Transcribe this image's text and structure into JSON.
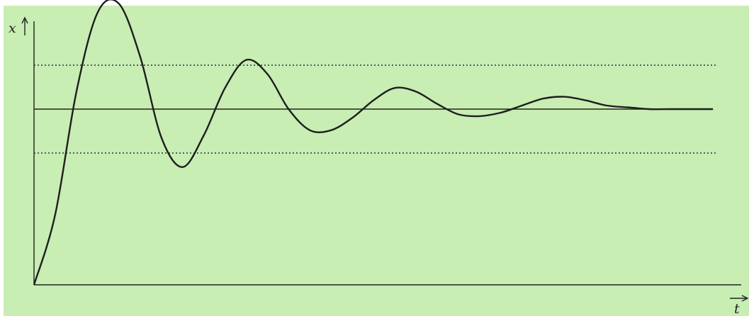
{
  "chart_data": {
    "type": "line",
    "title": "",
    "xlabel": "t",
    "ylabel": "x",
    "xlim": [
      0,
      10
    ],
    "ylim": [
      0,
      1.5
    ],
    "grid": false,
    "steady_state": 1.0,
    "tolerance_band": [
      0.75,
      1.25
    ],
    "series": [
      {
        "x": [
          0,
          0.3,
          0.6,
          0.9,
          1.2,
          1.5,
          1.8,
          2.1,
          2.4,
          2.7,
          3.0,
          3.3,
          3.6,
          3.9,
          4.2,
          4.5,
          4.8,
          5.1,
          5.4,
          5.7,
          6.0,
          6.3,
          6.6,
          6.9,
          7.2,
          7.5,
          7.8,
          8.1,
          8.4,
          8.7,
          9.0,
          9.3,
          9.6
        ],
        "y": [
          0,
          0.4,
          1.1,
          1.55,
          1.6,
          1.3,
          0.84,
          0.67,
          0.85,
          1.12,
          1.28,
          1.2,
          1.0,
          0.88,
          0.88,
          0.95,
          1.05,
          1.12,
          1.1,
          1.03,
          0.97,
          0.96,
          0.98,
          1.02,
          1.06,
          1.07,
          1.05,
          1.02,
          1.01,
          1.0,
          1.0,
          1.0,
          1.0
        ]
      }
    ],
    "reference_lines": [
      {
        "style": "solid",
        "y": 1.0
      },
      {
        "style": "dotted",
        "y": 1.25
      },
      {
        "style": "dotted",
        "y": 0.75
      }
    ]
  }
}
